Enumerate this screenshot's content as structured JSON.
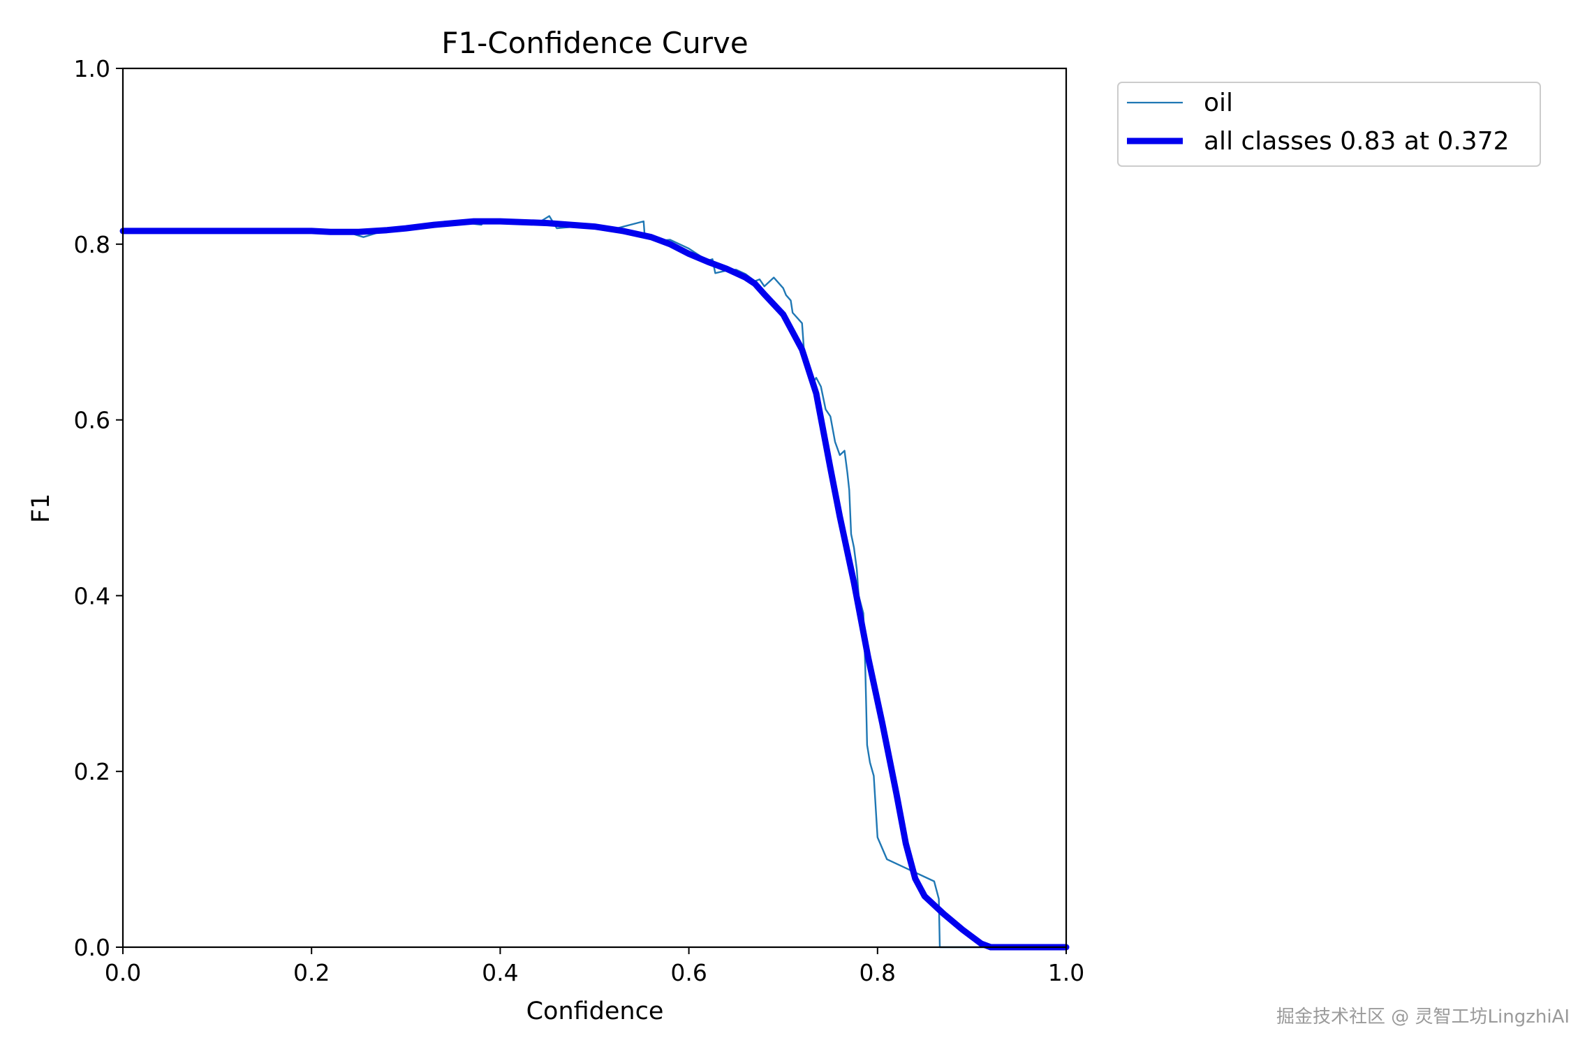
{
  "chart_data": {
    "type": "line",
    "title": "F1-Confidence Curve",
    "xlabel": "Confidence",
    "ylabel": "F1",
    "xlim": [
      0.0,
      1.0
    ],
    "ylim": [
      0.0,
      1.0
    ],
    "xticks": [
      "0.0",
      "0.2",
      "0.4",
      "0.6",
      "0.8",
      "1.0"
    ],
    "yticks": [
      "0.0",
      "0.2",
      "0.4",
      "0.6",
      "0.8",
      "1.0"
    ],
    "grid": false,
    "legend_placement": "outside-top-right",
    "series": [
      {
        "name": "oil",
        "color": "#1f77b4",
        "points": [
          [
            0.0,
            0.815
          ],
          [
            0.2,
            0.815
          ],
          [
            0.24,
            0.813
          ],
          [
            0.255,
            0.808
          ],
          [
            0.27,
            0.813
          ],
          [
            0.3,
            0.818
          ],
          [
            0.33,
            0.823
          ],
          [
            0.35,
            0.826
          ],
          [
            0.38,
            0.822
          ],
          [
            0.385,
            0.828
          ],
          [
            0.4,
            0.825
          ],
          [
            0.42,
            0.826
          ],
          [
            0.44,
            0.824
          ],
          [
            0.452,
            0.832
          ],
          [
            0.46,
            0.818
          ],
          [
            0.48,
            0.82
          ],
          [
            0.5,
            0.82
          ],
          [
            0.52,
            0.817
          ],
          [
            0.552,
            0.826
          ],
          [
            0.553,
            0.812
          ],
          [
            0.56,
            0.81
          ],
          [
            0.57,
            0.804
          ],
          [
            0.58,
            0.805
          ],
          [
            0.6,
            0.795
          ],
          [
            0.62,
            0.781
          ],
          [
            0.625,
            0.783
          ],
          [
            0.628,
            0.767
          ],
          [
            0.64,
            0.77
          ],
          [
            0.65,
            0.771
          ],
          [
            0.66,
            0.766
          ],
          [
            0.67,
            0.758
          ],
          [
            0.675,
            0.76
          ],
          [
            0.68,
            0.752
          ],
          [
            0.69,
            0.762
          ],
          [
            0.7,
            0.75
          ],
          [
            0.703,
            0.742
          ],
          [
            0.708,
            0.736
          ],
          [
            0.71,
            0.722
          ],
          [
            0.72,
            0.71
          ],
          [
            0.722,
            0.68
          ],
          [
            0.73,
            0.64
          ],
          [
            0.735,
            0.648
          ],
          [
            0.74,
            0.638
          ],
          [
            0.745,
            0.612
          ],
          [
            0.75,
            0.604
          ],
          [
            0.755,
            0.575
          ],
          [
            0.76,
            0.56
          ],
          [
            0.765,
            0.565
          ],
          [
            0.768,
            0.54
          ],
          [
            0.77,
            0.52
          ],
          [
            0.772,
            0.47
          ],
          [
            0.775,
            0.455
          ],
          [
            0.778,
            0.43
          ],
          [
            0.78,
            0.4
          ],
          [
            0.785,
            0.38
          ],
          [
            0.787,
            0.32
          ],
          [
            0.789,
            0.23
          ],
          [
            0.792,
            0.21
          ],
          [
            0.796,
            0.195
          ],
          [
            0.8,
            0.125
          ],
          [
            0.81,
            0.1
          ],
          [
            0.83,
            0.09
          ],
          [
            0.86,
            0.075
          ],
          [
            0.865,
            0.055
          ],
          [
            0.866,
            0.0
          ],
          [
            1.0,
            0.0
          ]
        ]
      },
      {
        "name": "all classes 0.83 at 0.372",
        "color": "#0000ee",
        "points": [
          [
            0.0,
            0.815
          ],
          [
            0.1,
            0.815
          ],
          [
            0.2,
            0.815
          ],
          [
            0.22,
            0.814
          ],
          [
            0.25,
            0.814
          ],
          [
            0.28,
            0.816
          ],
          [
            0.3,
            0.818
          ],
          [
            0.33,
            0.822
          ],
          [
            0.372,
            0.826
          ],
          [
            0.4,
            0.826
          ],
          [
            0.45,
            0.824
          ],
          [
            0.5,
            0.82
          ],
          [
            0.53,
            0.815
          ],
          [
            0.56,
            0.808
          ],
          [
            0.58,
            0.8
          ],
          [
            0.6,
            0.789
          ],
          [
            0.62,
            0.78
          ],
          [
            0.64,
            0.772
          ],
          [
            0.66,
            0.762
          ],
          [
            0.67,
            0.755
          ],
          [
            0.68,
            0.743
          ],
          [
            0.7,
            0.72
          ],
          [
            0.72,
            0.68
          ],
          [
            0.735,
            0.63
          ],
          [
            0.75,
            0.545
          ],
          [
            0.76,
            0.49
          ],
          [
            0.775,
            0.415
          ],
          [
            0.79,
            0.33
          ],
          [
            0.805,
            0.255
          ],
          [
            0.82,
            0.175
          ],
          [
            0.83,
            0.118
          ],
          [
            0.84,
            0.078
          ],
          [
            0.85,
            0.058
          ],
          [
            0.87,
            0.038
          ],
          [
            0.89,
            0.02
          ],
          [
            0.91,
            0.004
          ],
          [
            0.92,
            0.0
          ],
          [
            1.0,
            0.0
          ]
        ]
      }
    ]
  },
  "watermark": "掘金技术社区 @ 灵智工坊LingzhiAI"
}
